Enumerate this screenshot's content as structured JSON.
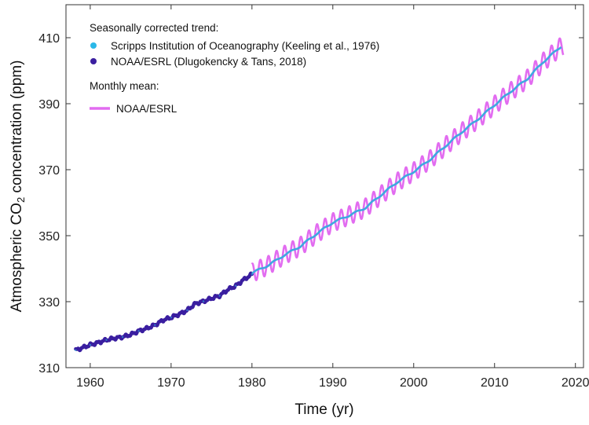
{
  "chart_data": {
    "type": "line",
    "title": "",
    "xlabel": "Time (yr)",
    "ylabel": {
      "prefix": "Atmospheric CO",
      "subscript": "2",
      "suffix": " concentration (ppm)"
    },
    "xlim": [
      1957,
      2021
    ],
    "ylim": [
      310,
      420
    ],
    "xticks": [
      1960,
      1970,
      1980,
      1990,
      2000,
      2010,
      2020
    ],
    "yticks": [
      310,
      330,
      350,
      370,
      390,
      410
    ],
    "grid": false,
    "legend": {
      "placement": "top-left",
      "group1_title": "Seasonally corrected trend:",
      "group2_title": "Monthly mean:"
    },
    "series": [
      {
        "name": "Scripps Institution of Oceanography (Keeling et al., 1976)",
        "style": "dots",
        "color": "#2bb8e8",
        "x": [
          1958.2,
          1960,
          1962,
          1964,
          1966,
          1968,
          1970,
          1972,
          1974,
          1976,
          1978,
          1980
        ],
        "y": [
          315.3,
          316.9,
          318.4,
          319.3,
          321.1,
          322.9,
          325.2,
          327.4,
          330.1,
          331.8,
          334.8,
          338.3
        ]
      },
      {
        "name": "NOAA/ESRL (Dlugokencky & Tans, 2018)",
        "style": "dots",
        "color": "#3b1fa0",
        "x": [
          1958.2,
          1959,
          1960,
          1961,
          1962,
          1963,
          1964,
          1965,
          1966,
          1967,
          1968,
          1969,
          1970,
          1971,
          1972,
          1973,
          1974,
          1975,
          1976,
          1977,
          1978,
          1979,
          1980
        ],
        "y": [
          315.3,
          316.0,
          316.9,
          317.6,
          318.4,
          318.9,
          319.3,
          320.0,
          321.1,
          321.9,
          322.9,
          324.4,
          325.2,
          326.2,
          327.4,
          329.4,
          330.1,
          331.0,
          331.8,
          333.6,
          334.8,
          336.7,
          338.3
        ]
      },
      {
        "name": "Seasonally corrected trend (1980–2018)",
        "style": "line",
        "color": "#3fa8e0",
        "x": [
          1980,
          1982,
          1984,
          1986,
          1988,
          1990,
          1992,
          1994,
          1996,
          1998,
          2000,
          2002,
          2004,
          2006,
          2008,
          2010,
          2012,
          2014,
          2016,
          2018.3
        ],
        "y": [
          338.7,
          341.0,
          344.1,
          346.8,
          350.6,
          354.0,
          356.1,
          358.4,
          362.4,
          366.3,
          369.4,
          373.0,
          377.3,
          381.5,
          385.4,
          389.6,
          393.7,
          397.4,
          402.6,
          407.5
        ]
      },
      {
        "name": "NOAA/ESRL",
        "style": "seasonal-line",
        "color": "#e26cf0",
        "seasonal_amplitude_ppm": 2.8,
        "x_start": 1980.0,
        "x_end": 2018.5
      }
    ]
  }
}
